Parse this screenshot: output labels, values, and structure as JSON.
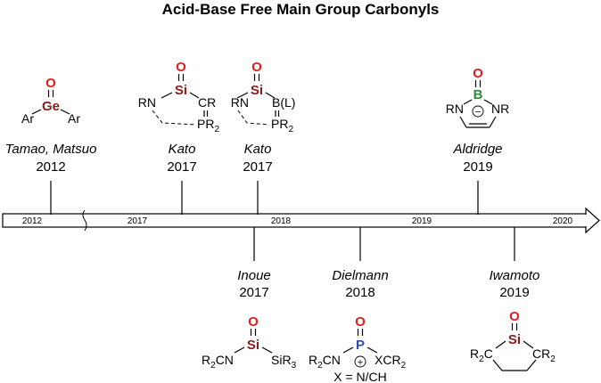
{
  "title": "Acid-Base Free Main Group Carbonyls",
  "timeline": {
    "labels": [
      "2012",
      "2017",
      "2018",
      "2019",
      "2020"
    ]
  },
  "entries": [
    {
      "author": "Tamao, Matsuo",
      "year": "2012"
    },
    {
      "author": "Kato",
      "year": "2017"
    },
    {
      "author": "Kato",
      "year": "2017"
    },
    {
      "author": "Aldridge",
      "year": "2019"
    },
    {
      "author": "Inoue",
      "year": "2017"
    },
    {
      "author": "Dielmann",
      "year": "2018"
    },
    {
      "author": "Iwamoto",
      "year": "2019"
    }
  ],
  "structures": {
    "ge": {
      "o": "O",
      "center": "Ge",
      "left": "Ar",
      "right": "Ar"
    },
    "si1": {
      "o": "O",
      "center": "Si",
      "rn": "RN",
      "cr": "CR",
      "p": "PR",
      "p_sub": "2"
    },
    "si2": {
      "o": "O",
      "center": "Si",
      "rn": "RN",
      "b": "B(L)",
      "p": "PR",
      "p_sub": "2"
    },
    "b": {
      "o": "O",
      "center": "B",
      "rn_left": "RN",
      "rn_right": "NR",
      "charge": "−"
    },
    "si3": {
      "o": "O",
      "center": "Si",
      "left": "R",
      "left_sub": "2",
      "left_tail": "CN",
      "right": "SiR",
      "right_sub": "3"
    },
    "p": {
      "o": "O",
      "center": "P",
      "left": "R",
      "left_sub": "2",
      "left_tail": "CN",
      "right": "XCR",
      "right_sub": "2",
      "charge": "+",
      "note": "X = N/CH"
    },
    "si4": {
      "o": "O",
      "center": "Si",
      "left": "R",
      "left_sub": "2",
      "left_tail": "C",
      "right": "CR",
      "right_sub": "2"
    }
  },
  "colors": {
    "oxygen": "#e31b1b",
    "germanium": "#8b1a1a",
    "silicon": "#8b1a1a",
    "boron": "#2e8b3a",
    "phosphorus": "#2a4fa8",
    "line": "#000000"
  }
}
